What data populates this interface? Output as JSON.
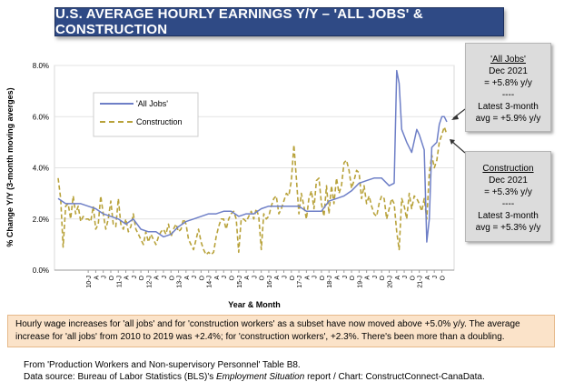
{
  "title": "U.S. AVERAGE HOURLY EARNINGS Y/Y – 'ALL JOBS' & CONSTRUCTION",
  "callouts": {
    "all_jobs": {
      "heading": "'All Jobs'",
      "lines": [
        "Dec 2021",
        "= +5.8% y/y",
        "----",
        "Latest 3-month",
        "avg = +5.9% y/y"
      ]
    },
    "construction": {
      "heading": "Construction",
      "lines": [
        "Dec 2021",
        "= +5.3% y/y",
        "----",
        "Latest 3-month",
        "avg = +5.3% y/y"
      ]
    }
  },
  "note": "Hourly wage increases for 'all jobs' and for 'construction workers' as a subset have now moved above +5.0% y/y. The average increase for 'all jobs' from 2010 to 2019 was +2.4%; for 'construction workers', +2.3%. There's been more than a doubling.",
  "source": {
    "line1": "From 'Production Workers and Non-supervisory Personnel' Table B8.",
    "line2_prefix": "Data source: Bureau of Labor Statistics (BLS)'s ",
    "line2_em": "Employment Situation",
    "line2_suffix": " report / Chart: ConstructConnect-CanaData."
  },
  "colors": {
    "all_jobs": "#6e7fc7",
    "construction": "#b8a23a",
    "title_bg": "#2f4a85"
  },
  "chart_data": {
    "type": "line",
    "xlabel": "Year & Month",
    "ylabel": "% Change Y/Y (3-month moving averges)",
    "ylim": [
      0,
      8
    ],
    "yticks": [
      "0.0%",
      "2.0%",
      "4.0%",
      "6.0%",
      "8.0%"
    ],
    "grid": true,
    "legend_position": "upper-left",
    "x_start": "2009-01",
    "x_end": "2021-12",
    "xtick_labels": [
      "10-J",
      "A",
      "J",
      "O",
      "11-J",
      "A",
      "J",
      "O",
      "12-J",
      "A",
      "J",
      "O",
      "13-J",
      "A",
      "J",
      "O",
      "14-J",
      "A",
      "J",
      "O",
      "15-J",
      "A",
      "J",
      "O",
      "16-J",
      "A",
      "J",
      "O",
      "17-J",
      "A",
      "J",
      "O",
      "18-J",
      "A",
      "J",
      "O",
      "19-J",
      "A",
      "J",
      "O",
      "20-J",
      "A",
      "J",
      "O",
      "21-J",
      "A",
      "J",
      "O"
    ],
    "series": [
      {
        "name": "'All Jobs'",
        "style": "solid",
        "points": [
          [
            "2009-01",
            2.8
          ],
          [
            "2009-04",
            2.6
          ],
          [
            "2009-07",
            2.6
          ],
          [
            "2009-10",
            2.6
          ],
          [
            "2010-01",
            2.5
          ],
          [
            "2010-04",
            2.4
          ],
          [
            "2010-07",
            2.2
          ],
          [
            "2010-10",
            2.1
          ],
          [
            "2011-01",
            2.0
          ],
          [
            "2011-04",
            1.8
          ],
          [
            "2011-07",
            2.0
          ],
          [
            "2011-10",
            1.6
          ],
          [
            "2012-01",
            1.5
          ],
          [
            "2012-04",
            1.5
          ],
          [
            "2012-07",
            1.3
          ],
          [
            "2012-10",
            1.4
          ],
          [
            "2013-01",
            1.7
          ],
          [
            "2013-04",
            1.9
          ],
          [
            "2013-07",
            2.0
          ],
          [
            "2013-10",
            2.1
          ],
          [
            "2014-01",
            2.2
          ],
          [
            "2014-04",
            2.2
          ],
          [
            "2014-07",
            2.3
          ],
          [
            "2014-10",
            2.3
          ],
          [
            "2015-01",
            2.1
          ],
          [
            "2015-04",
            2.2
          ],
          [
            "2015-07",
            2.2
          ],
          [
            "2015-10",
            2.4
          ],
          [
            "2016-01",
            2.5
          ],
          [
            "2016-04",
            2.5
          ],
          [
            "2016-07",
            2.5
          ],
          [
            "2016-10",
            2.5
          ],
          [
            "2017-01",
            2.5
          ],
          [
            "2017-04",
            2.3
          ],
          [
            "2017-07",
            2.3
          ],
          [
            "2017-10",
            2.3
          ],
          [
            "2018-01",
            2.7
          ],
          [
            "2018-04",
            2.8
          ],
          [
            "2018-07",
            2.9
          ],
          [
            "2018-10",
            3.1
          ],
          [
            "2019-01",
            3.4
          ],
          [
            "2019-04",
            3.5
          ],
          [
            "2019-07",
            3.6
          ],
          [
            "2019-10",
            3.6
          ],
          [
            "2020-01",
            3.3
          ],
          [
            "2020-03",
            3.4
          ],
          [
            "2020-04",
            7.8
          ],
          [
            "2020-05",
            7.3
          ],
          [
            "2020-06",
            5.5
          ],
          [
            "2020-08",
            5.0
          ],
          [
            "2020-10",
            4.6
          ],
          [
            "2020-12",
            5.5
          ],
          [
            "2021-01",
            5.3
          ],
          [
            "2021-03",
            4.7
          ],
          [
            "2021-04",
            1.1
          ],
          [
            "2021-05",
            2.0
          ],
          [
            "2021-06",
            4.8
          ],
          [
            "2021-08",
            5.0
          ],
          [
            "2021-09",
            5.7
          ],
          [
            "2021-10",
            6.0
          ],
          [
            "2021-11",
            6.0
          ],
          [
            "2021-12",
            5.8
          ]
        ]
      },
      {
        "name": "Construction",
        "style": "dashed",
        "points": [
          [
            "2009-01",
            3.6
          ],
          [
            "2009-02",
            2.8
          ],
          [
            "2009-03",
            0.9
          ],
          [
            "2009-04",
            2.5
          ],
          [
            "2009-05",
            2.6
          ],
          [
            "2009-06",
            2.0
          ],
          [
            "2009-07",
            2.9
          ],
          [
            "2009-08",
            2.2
          ],
          [
            "2009-09",
            2.5
          ],
          [
            "2009-10",
            1.9
          ],
          [
            "2009-11",
            2.1
          ],
          [
            "2009-12",
            2.0
          ],
          [
            "2010-01",
            2.0
          ],
          [
            "2010-02",
            1.9
          ],
          [
            "2010-03",
            2.5
          ],
          [
            "2010-04",
            1.6
          ],
          [
            "2010-05",
            1.8
          ],
          [
            "2010-06",
            2.9
          ],
          [
            "2010-07",
            2.2
          ],
          [
            "2010-08",
            1.6
          ],
          [
            "2010-09",
            2.0
          ],
          [
            "2010-10",
            2.7
          ],
          [
            "2010-11",
            1.8
          ],
          [
            "2010-12",
            1.7
          ],
          [
            "2011-01",
            2.8
          ],
          [
            "2011-02",
            1.8
          ],
          [
            "2011-03",
            1.6
          ],
          [
            "2011-04",
            2.0
          ],
          [
            "2011-05",
            1.5
          ],
          [
            "2011-06",
            1.7
          ],
          [
            "2011-07",
            2.2
          ],
          [
            "2011-08",
            1.6
          ],
          [
            "2011-09",
            1.4
          ],
          [
            "2011-10",
            1.2
          ],
          [
            "2011-11",
            1.0
          ],
          [
            "2011-12",
            1.5
          ],
          [
            "2012-01",
            1.1
          ],
          [
            "2012-02",
            1.4
          ],
          [
            "2012-03",
            1.2
          ],
          [
            "2012-04",
            1.0
          ],
          [
            "2012-05",
            1.3
          ],
          [
            "2012-06",
            1.5
          ],
          [
            "2012-07",
            1.6
          ],
          [
            "2012-08",
            1.4
          ],
          [
            "2012-09",
            1.8
          ],
          [
            "2012-10",
            1.3
          ],
          [
            "2012-11",
            1.6
          ],
          [
            "2012-12",
            1.8
          ],
          [
            "2013-01",
            1.5
          ],
          [
            "2013-02",
            1.6
          ],
          [
            "2013-03",
            2.0
          ],
          [
            "2013-04",
            1.8
          ],
          [
            "2013-05",
            1.2
          ],
          [
            "2013-06",
            1.0
          ],
          [
            "2013-07",
            0.8
          ],
          [
            "2013-08",
            1.2
          ],
          [
            "2013-09",
            1.6
          ],
          [
            "2013-10",
            1.1
          ],
          [
            "2013-11",
            0.8
          ],
          [
            "2013-12",
            0.6
          ],
          [
            "2014-01",
            0.7
          ],
          [
            "2014-02",
            0.6
          ],
          [
            "2014-03",
            0.7
          ],
          [
            "2014-04",
            1.3
          ],
          [
            "2014-05",
            1.7
          ],
          [
            "2014-06",
            2.0
          ],
          [
            "2014-07",
            2.0
          ],
          [
            "2014-08",
            1.6
          ],
          [
            "2014-09",
            2.0
          ],
          [
            "2014-10",
            2.2
          ],
          [
            "2014-11",
            2.3
          ],
          [
            "2014-12",
            2.0
          ],
          [
            "2015-01",
            0.7
          ],
          [
            "2015-02",
            2.0
          ],
          [
            "2015-03",
            2.0
          ],
          [
            "2015-04",
            1.9
          ],
          [
            "2015-05",
            2.1
          ],
          [
            "2015-06",
            2.3
          ],
          [
            "2015-07",
            2.0
          ],
          [
            "2015-08",
            2.4
          ],
          [
            "2015-09",
            2.1
          ],
          [
            "2015-10",
            0.8
          ],
          [
            "2015-11",
            2.2
          ],
          [
            "2015-12",
            2.0
          ],
          [
            "2016-01",
            2.1
          ],
          [
            "2016-02",
            2.5
          ],
          [
            "2016-03",
            2.8
          ],
          [
            "2016-04",
            2.9
          ],
          [
            "2016-05",
            2.2
          ],
          [
            "2016-06",
            2.4
          ],
          [
            "2016-07",
            2.7
          ],
          [
            "2016-08",
            3.0
          ],
          [
            "2016-09",
            2.9
          ],
          [
            "2016-10",
            3.5
          ],
          [
            "2016-11",
            4.9
          ],
          [
            "2016-12",
            3.6
          ],
          [
            "2017-01",
            2.2
          ],
          [
            "2017-02",
            3.0
          ],
          [
            "2017-03",
            2.5
          ],
          [
            "2017-04",
            2.0
          ],
          [
            "2017-05",
            2.8
          ],
          [
            "2017-06",
            3.1
          ],
          [
            "2017-07",
            2.4
          ],
          [
            "2017-08",
            3.5
          ],
          [
            "2017-09",
            3.6
          ],
          [
            "2017-10",
            2.6
          ],
          [
            "2017-11",
            2.1
          ],
          [
            "2017-12",
            3.3
          ],
          [
            "2018-01",
            2.2
          ],
          [
            "2018-02",
            3.3
          ],
          [
            "2018-03",
            2.6
          ],
          [
            "2018-04",
            3.6
          ],
          [
            "2018-05",
            3.0
          ],
          [
            "2018-06",
            3.3
          ],
          [
            "2018-07",
            4.2
          ],
          [
            "2018-08",
            4.3
          ],
          [
            "2018-09",
            3.9
          ],
          [
            "2018-10",
            3.2
          ],
          [
            "2018-11",
            3.5
          ],
          [
            "2018-12",
            3.9
          ],
          [
            "2019-01",
            3.8
          ],
          [
            "2019-02",
            2.8
          ],
          [
            "2019-03",
            3.3
          ],
          [
            "2019-04",
            2.6
          ],
          [
            "2019-05",
            2.9
          ],
          [
            "2019-06",
            2.5
          ],
          [
            "2019-07",
            2.2
          ],
          [
            "2019-08",
            2.1
          ],
          [
            "2019-09",
            2.6
          ],
          [
            "2019-10",
            2.9
          ],
          [
            "2019-11",
            2.8
          ],
          [
            "2019-12",
            2.0
          ],
          [
            "2020-01",
            2.4
          ],
          [
            "2020-02",
            2.8
          ],
          [
            "2020-03",
            2.6
          ],
          [
            "2020-04",
            1.5
          ],
          [
            "2020-05",
            0.8
          ],
          [
            "2020-06",
            2.8
          ],
          [
            "2020-07",
            2.5
          ],
          [
            "2020-08",
            2.0
          ],
          [
            "2020-09",
            3.0
          ],
          [
            "2020-10",
            2.4
          ],
          [
            "2020-11",
            2.9
          ],
          [
            "2020-12",
            2.8
          ],
          [
            "2021-01",
            2.6
          ],
          [
            "2021-02",
            2.3
          ],
          [
            "2021-03",
            2.8
          ],
          [
            "2021-04",
            2.0
          ],
          [
            "2021-05",
            3.8
          ],
          [
            "2021-06",
            4.5
          ],
          [
            "2021-07",
            4.0
          ],
          [
            "2021-08",
            4.3
          ],
          [
            "2021-09",
            5.0
          ],
          [
            "2021-10",
            5.3
          ],
          [
            "2021-11",
            5.6
          ],
          [
            "2021-12",
            5.3
          ]
        ]
      }
    ]
  }
}
